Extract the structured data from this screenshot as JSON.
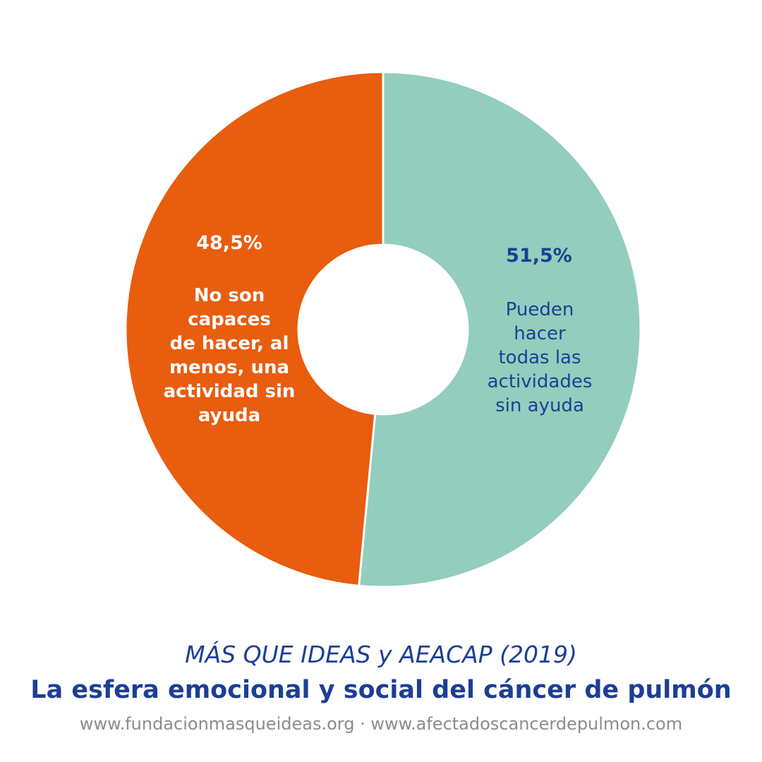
{
  "chart_data": {
    "type": "pie",
    "style": "donut",
    "slices": [
      {
        "value": 51.5,
        "value_label": "51,5%",
        "label": "Pueden\nhacer\ntodas las\nactividades\nsin ayuda",
        "color": "#93cdbd"
      },
      {
        "value": 48.5,
        "value_label": "48,5%",
        "label": "No son\ncapaces\nde hacer, al\nmenos, una\nactividad sin\nayuda",
        "color": "#e85d0e"
      }
    ],
    "legend": "none"
  },
  "footer": {
    "source": "MÁS QUE IDEAS y AEACAP (2019)",
    "title": "La esfera emocional y social del cáncer de pulmón",
    "urls": "www.fundacionmasqueideas.org · www.afectadoscancerdepulmon.com"
  },
  "colors": {
    "accent_blue": "#1c3f94",
    "url_gray": "#8c8c8c",
    "slice_separator": "#ffffff"
  }
}
